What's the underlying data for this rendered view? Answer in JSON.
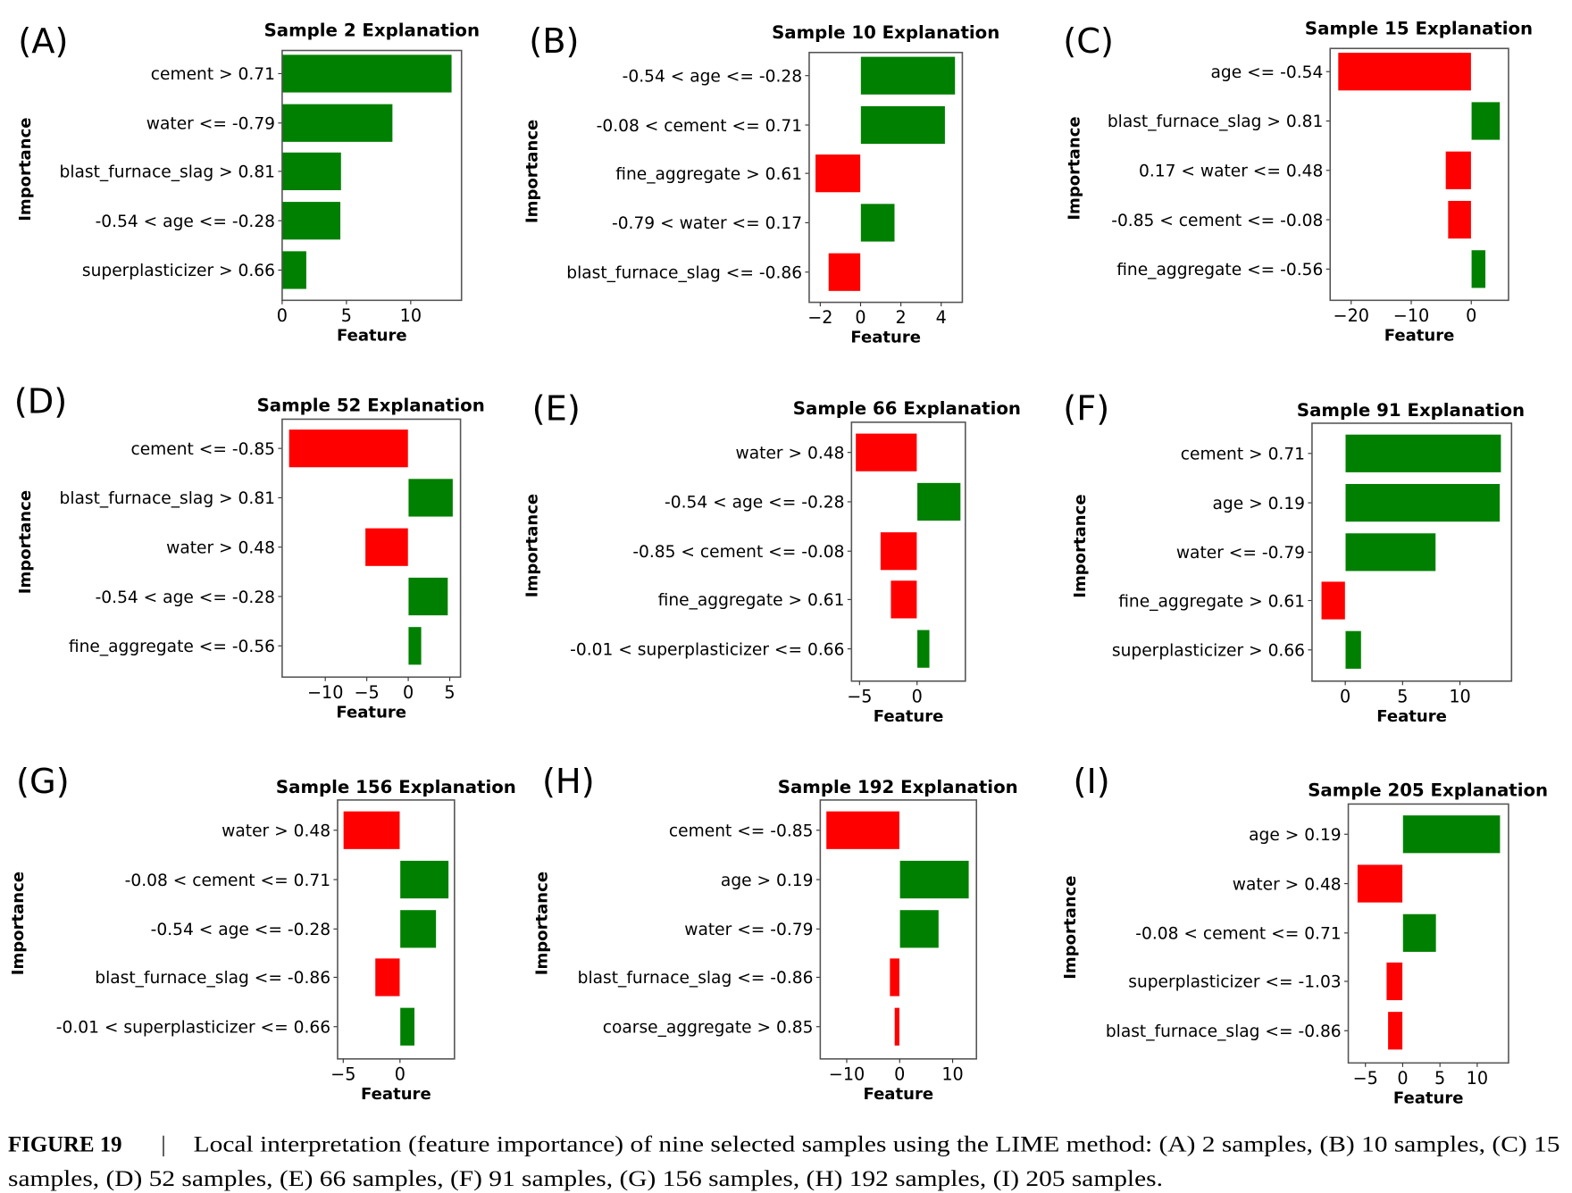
{
  "colors": {
    "positive": "#008000",
    "negative": "#ff0000",
    "axis": "#555555"
  },
  "chart_data": [
    {
      "type": "bar",
      "orientation": "horizontal",
      "panel": "(A)",
      "title": "Sample 2 Explanation",
      "xlabel": "Feature",
      "ylabel": "Importance",
      "xlim": [
        0,
        13.95
      ],
      "xticks": [
        0,
        5,
        10
      ],
      "categories": [
        "cement > 0.71",
        "water <= -0.79",
        "blast_furnace_slag > 0.81",
        "-0.54 < age <= -0.28",
        "superplasticizer > 0.66"
      ],
      "values": [
        13.2,
        8.6,
        4.6,
        4.55,
        1.9
      ]
    },
    {
      "type": "bar",
      "orientation": "horizontal",
      "panel": "(B)",
      "title": "Sample 10 Explanation",
      "xlabel": "Feature",
      "ylabel": "Importance",
      "xlim": [
        -2.55,
        5.05
      ],
      "xticks": [
        -2,
        0,
        2,
        4
      ],
      "categories": [
        "-0.54 < age <= -0.28",
        "-0.08 < cement <= 0.71",
        "fine_aggregate  > 0.61",
        "-0.79 < water <= 0.17",
        "blast_furnace_slag <= -0.86"
      ],
      "values": [
        4.7,
        4.2,
        -2.25,
        1.7,
        -1.6
      ]
    },
    {
      "type": "bar",
      "orientation": "horizontal",
      "panel": "(C)",
      "title": "Sample 15 Explanation",
      "xlabel": "Feature",
      "ylabel": "Importance",
      "xlim": [
        -23.5,
        6.2
      ],
      "xticks": [
        -20,
        -10,
        0
      ],
      "categories": [
        "age <= -0.54",
        "blast_furnace_slag > 0.81",
        "0.17 < water <= 0.48",
        "-0.85 < cement <= -0.08",
        "fine_aggregate  <= -0.56"
      ],
      "values": [
        -22.2,
        4.8,
        -4.3,
        -3.9,
        2.4
      ]
    },
    {
      "type": "bar",
      "orientation": "horizontal",
      "panel": "(D)",
      "title": "Sample 52 Explanation",
      "xlabel": "Feature",
      "ylabel": "Importance",
      "xlim": [
        -15.2,
        6.3
      ],
      "xticks": [
        -10,
        -5,
        0,
        5
      ],
      "categories": [
        "cement <= -0.85",
        "blast_furnace_slag > 0.81",
        "water > 0.48",
        "-0.54 < age <= -0.28",
        "fine_aggregate  <= -0.56"
      ],
      "values": [
        -14.4,
        5.4,
        -5.2,
        4.8,
        1.6
      ]
    },
    {
      "type": "bar",
      "orientation": "horizontal",
      "panel": "(E)",
      "title": "Sample 66 Explanation",
      "xlabel": "Feature",
      "ylabel": "Importance",
      "xlim": [
        -5.7,
        4.2
      ],
      "xticks": [
        -5,
        0
      ],
      "categories": [
        "water > 0.48",
        "-0.54 < age <= -0.28",
        "-0.85 < cement <= -0.08",
        "fine_aggregate  > 0.61",
        "-0.01 < superplasticizer <= 0.66"
      ],
      "values": [
        -5.35,
        3.8,
        -3.2,
        -2.3,
        1.1
      ]
    },
    {
      "type": "bar",
      "orientation": "horizontal",
      "panel": "(F)",
      "title": "Sample 91 Explanation",
      "xlabel": "Feature",
      "ylabel": "Importance",
      "xlim": [
        -2.9,
        14.5
      ],
      "xticks": [
        0,
        5,
        10
      ],
      "categories": [
        "cement > 0.71",
        "age > 0.19",
        "water <= -0.79",
        "fine_aggregate  > 0.61",
        "superplasticizer > 0.66"
      ],
      "values": [
        13.6,
        13.5,
        7.9,
        -2.1,
        1.4
      ]
    },
    {
      "type": "bar",
      "orientation": "horizontal",
      "panel": "(G)",
      "title": "Sample 156 Explanation",
      "xlabel": "Feature",
      "ylabel": "Importance",
      "xlim": [
        -5.5,
        4.8
      ],
      "xticks": [
        -5,
        0
      ],
      "categories": [
        "water > 0.48",
        "-0.08 < cement <= 0.71",
        "-0.54 < age <= -0.28",
        "blast_furnace_slag <= -0.86",
        "-0.01 < superplasticizer <= 0.66"
      ],
      "values": [
        -5.0,
        4.3,
        3.2,
        -2.2,
        1.3
      ]
    },
    {
      "type": "bar",
      "orientation": "horizontal",
      "panel": "(H)",
      "title": "Sample 192 Explanation",
      "xlabel": "Feature",
      "ylabel": "Importance",
      "xlim": [
        -15,
        14.5
      ],
      "xticks": [
        -10,
        0,
        10
      ],
      "categories": [
        "cement <= -0.85",
        "age > 0.19",
        "water <= -0.79",
        "blast_furnace_slag <= -0.86",
        "coarse_aggregate > 0.85"
      ],
      "values": [
        -13.9,
        13.1,
        7.4,
        -1.9,
        -1.0
      ]
    },
    {
      "type": "bar",
      "orientation": "horizontal",
      "panel": "(I)",
      "title": "Sample 205 Explanation",
      "xlabel": "Feature",
      "ylabel": "Importance",
      "xlim": [
        -7.3,
        14.2
      ],
      "xticks": [
        -5,
        0,
        5,
        10
      ],
      "categories": [
        "age > 0.19",
        "water > 0.48",
        "-0.08 < cement <= 0.71",
        "superplasticizer <= -1.03",
        "blast_furnace_slag <= -0.86"
      ],
      "values": [
        13.1,
        -6.1,
        4.5,
        -2.2,
        -2.0
      ]
    }
  ],
  "caption": {
    "label": "FIGURE 19",
    "separator": "|",
    "line1": "Local interpretation (feature importance) of nine selected samples using the LIME method: (A) 2 samples, (B) 10 samples, (C) 15",
    "line2": "samples, (D) 52 samples, (E) 66 samples, (F) 91 samples, (G) 156 samples, (H) 192 samples, (I) 205 samples."
  }
}
